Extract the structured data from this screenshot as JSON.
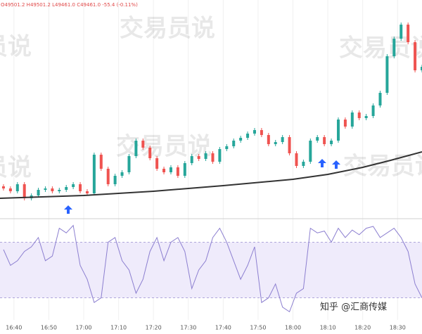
{
  "header": "O49501.2 H49501.2 L49461.0 C49461.0 -55.4 (-0.11%)",
  "watermark": "交易员说",
  "credit": "知乎 @汇商传媒",
  "chart_data": [
    {
      "type": "candlestick",
      "x": [
        997,
        999,
        1001,
        1003,
        1005,
        1007,
        1009,
        1011,
        1013,
        1015,
        1017,
        1019,
        1021,
        1023,
        1025,
        1027,
        1029,
        1031,
        1033,
        1035,
        1037,
        1039,
        1041,
        1043,
        1045,
        1047,
        1049,
        1051,
        1053,
        1055,
        1057,
        1059,
        1061,
        1063,
        1065,
        1067,
        1069,
        1071,
        1073,
        1075,
        1077,
        1079,
        1081,
        1083,
        1085,
        1087,
        1089,
        1091,
        1093,
        1095,
        1097,
        1099,
        1101,
        1103,
        1105,
        1107,
        1109,
        1111,
        1113,
        1115,
        1117
      ],
      "open": [
        49370,
        49364,
        49356,
        49376,
        49336,
        49344,
        49360,
        49364,
        49356,
        49360,
        49368,
        49376,
        49356,
        49350,
        49460,
        49420,
        49376,
        49400,
        49410,
        49456,
        49500,
        49480,
        49450,
        49420,
        49410,
        49424,
        49400,
        49436,
        49456,
        49448,
        49464,
        49440,
        49476,
        49484,
        49500,
        49508,
        49520,
        49530,
        49516,
        49490,
        49496,
        49510,
        49464,
        49428,
        49440,
        49500,
        49510,
        49490,
        49500,
        49560,
        49540,
        49580,
        49564,
        49570,
        49600,
        49636,
        49740,
        49790,
        49830,
        49780,
        49700
      ],
      "high": [
        49376,
        49370,
        49382,
        49382,
        49350,
        49366,
        49370,
        49370,
        49366,
        49374,
        49382,
        49382,
        49362,
        49466,
        49466,
        49426,
        49406,
        49416,
        49462,
        49506,
        49506,
        49486,
        49456,
        49426,
        49430,
        49430,
        49442,
        49462,
        49462,
        49470,
        49470,
        49482,
        49490,
        49506,
        49514,
        49526,
        49536,
        49536,
        49522,
        49502,
        49516,
        49516,
        49470,
        49446,
        49506,
        49516,
        49516,
        49506,
        49566,
        49566,
        49586,
        49586,
        49576,
        49606,
        49642,
        49746,
        49796,
        49836,
        49836,
        49786,
        49716
      ],
      "low": [
        49358,
        49350,
        49350,
        49330,
        49330,
        49338,
        49354,
        49350,
        49350,
        49354,
        49362,
        49350,
        49344,
        49344,
        49414,
        49370,
        49370,
        49394,
        49404,
        49450,
        49474,
        49444,
        49414,
        49404,
        49404,
        49394,
        49394,
        49430,
        49442,
        49442,
        49434,
        49434,
        49470,
        49478,
        49494,
        49502,
        49514,
        49510,
        49484,
        49484,
        49490,
        49458,
        49422,
        49422,
        49434,
        49494,
        49484,
        49484,
        49494,
        49534,
        49534,
        49558,
        49558,
        49564,
        49594,
        49630,
        49734,
        49784,
        49774,
        49694,
        49694
      ],
      "close": [
        49364,
        49356,
        49376,
        49336,
        49344,
        49360,
        49364,
        49356,
        49360,
        49368,
        49376,
        49356,
        49350,
        49460,
        49420,
        49376,
        49400,
        49410,
        49456,
        49500,
        49480,
        49450,
        49420,
        49410,
        49424,
        49400,
        49436,
        49456,
        49448,
        49464,
        49440,
        49476,
        49484,
        49500,
        49508,
        49520,
        49530,
        49516,
        49490,
        49496,
        49510,
        49464,
        49428,
        49440,
        49500,
        49510,
        49490,
        49500,
        49560,
        49540,
        49580,
        49564,
        49570,
        49600,
        49636,
        49740,
        49790,
        49830,
        49780,
        49700,
        49710
      ],
      "up_color": "#26a69a",
      "down_color": "#ef5350",
      "ylim": [
        49300,
        49900
      ],
      "xlim": [
        996,
        1117
      ],
      "xticks": [
        {
          "value": 1000,
          "label": "16:40"
        },
        {
          "value": 1010,
          "label": "16:50"
        },
        {
          "value": 1020,
          "label": "17:00"
        },
        {
          "value": 1030,
          "label": "17:10"
        },
        {
          "value": 1040,
          "label": "17:20"
        },
        {
          "value": 1050,
          "label": "17:30"
        },
        {
          "value": 1060,
          "label": "17:40"
        },
        {
          "value": 1070,
          "label": "17:50"
        },
        {
          "value": 1080,
          "label": "18:00"
        },
        {
          "value": 1090,
          "label": "18:10"
        },
        {
          "value": 1100,
          "label": "18:20"
        },
        {
          "value": 1110,
          "label": "18:30"
        }
      ],
      "grid": true,
      "ma": {
        "x": [
          996,
          1020,
          1040,
          1060,
          1080,
          1090,
          1100,
          1108,
          1117
        ],
        "values": [
          49336,
          49344,
          49356,
          49372,
          49390,
          49404,
          49424,
          49444,
          49468
        ],
        "color": "#333333"
      }
    },
    {
      "type": "line",
      "x": [
        997,
        999,
        1001,
        1003,
        1005,
        1007,
        1009,
        1011,
        1013,
        1015,
        1017,
        1019,
        1021,
        1023,
        1025,
        1027,
        1029,
        1031,
        1033,
        1035,
        1037,
        1039,
        1041,
        1043,
        1045,
        1047,
        1049,
        1051,
        1053,
        1055,
        1057,
        1059,
        1061,
        1063,
        1065,
        1067,
        1069,
        1071,
        1073,
        1075,
        1077,
        1079,
        1081,
        1083,
        1085,
        1087,
        1089,
        1091,
        1093,
        1095,
        1097,
        1099,
        1101,
        1103,
        1105,
        1107,
        1109,
        1111,
        1113,
        1115,
        1117
      ],
      "values": [
        72,
        55,
        60,
        70,
        75,
        85,
        60,
        65,
        95,
        90,
        98,
        55,
        40,
        15,
        20,
        80,
        85,
        60,
        50,
        25,
        40,
        70,
        85,
        60,
        80,
        85,
        70,
        30,
        50,
        60,
        85,
        95,
        80,
        60,
        40,
        55,
        75,
        15,
        20,
        35,
        10,
        5,
        25,
        30,
        95,
        90,
        92,
        80,
        95,
        85,
        93,
        88,
        95,
        97,
        85,
        90,
        95,
        85,
        70,
        35,
        20
      ],
      "color": "#8c7fd0",
      "ylim": [
        0,
        100
      ],
      "xlim": [
        996,
        1117
      ],
      "bands": [
        20,
        80
      ],
      "band_color": "#efebfb"
    }
  ]
}
